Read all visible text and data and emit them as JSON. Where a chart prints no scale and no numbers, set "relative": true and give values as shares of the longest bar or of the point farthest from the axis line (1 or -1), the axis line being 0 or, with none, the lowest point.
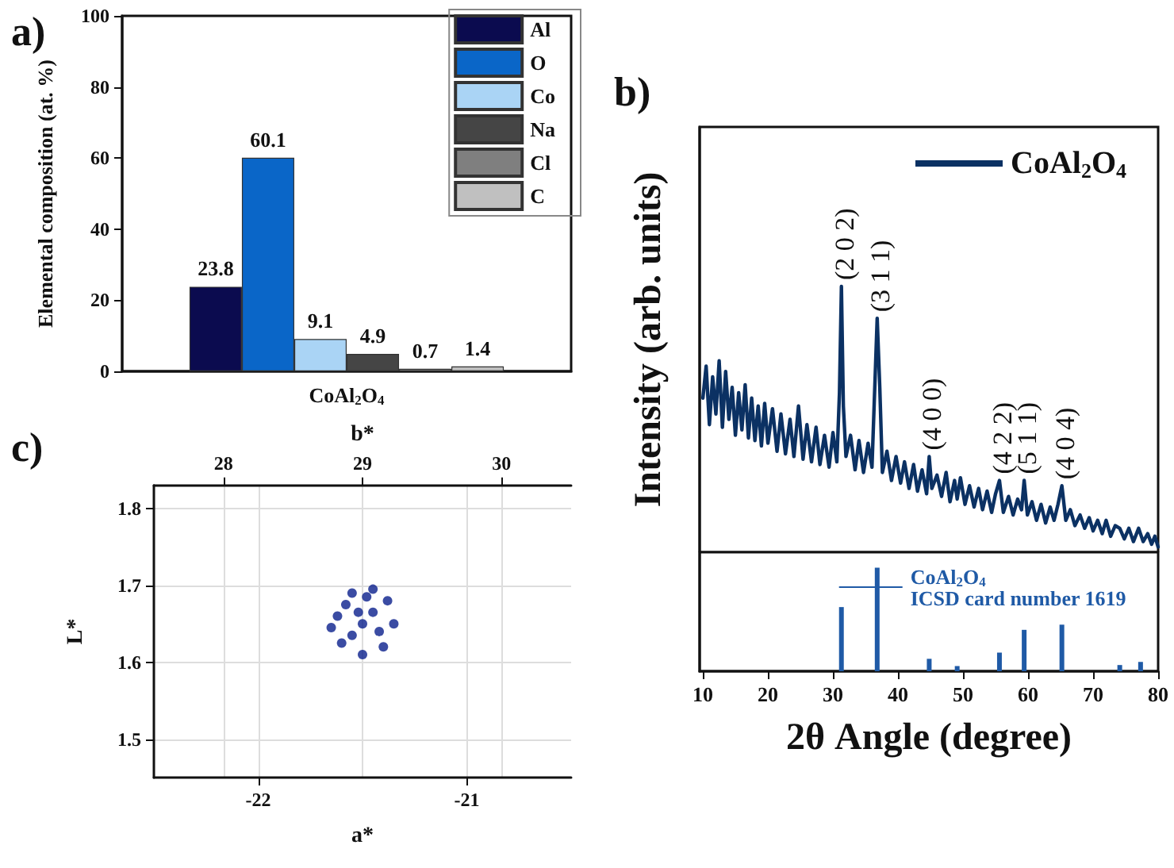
{
  "chart_data": [
    {
      "type": "bar",
      "title": "a)",
      "ylabel": "Elemental composition (at. %)",
      "categories": [
        "CoAl$_{2}$O$_{4}$"
      ],
      "series": [
        {
          "name": "Al",
          "color": "#0b0b4f",
          "values": [
            23.8
          ]
        },
        {
          "name": "O",
          "color": "#0a66c8",
          "values": [
            60.1
          ]
        },
        {
          "name": "Co",
          "color": "#aad4f5",
          "values": [
            9.1
          ]
        },
        {
          "name": "Na",
          "color": "#454545",
          "values": [
            4.9
          ]
        },
        {
          "name": "Cl",
          "color": "#7f7f7f",
          "values": [
            0.7
          ]
        },
        {
          "name": "C",
          "color": "#c0c0c0",
          "values": [
            1.4
          ]
        }
      ],
      "ylim": [
        0,
        100
      ],
      "yticks": [
        0,
        20,
        40,
        60,
        80,
        100
      ],
      "data_labels": true,
      "legend": "top right"
    },
    {
      "type": "line",
      "title": "b)",
      "ylabel": "Intensity (arb. units)",
      "relative": true,
      "xlim": [
        9.5,
        80
      ],
      "marker": "none",
      "line_style": "solid",
      "legend": "top right",
      "series": [
        {
          "name": "CoAl$_{2}$O$_{4}$",
          "color": "#0b3163",
          "x": [
            10,
            10.5,
            11,
            11.5,
            12,
            12.5,
            13,
            13.5,
            14,
            14.5,
            15,
            15.5,
            16,
            16.5,
            17,
            17.5,
            18,
            18.5,
            19,
            19.5,
            20,
            20.7,
            21.4,
            22,
            22.7,
            23.4,
            24,
            24.7,
            25.4,
            26,
            26.7,
            27.4,
            28,
            28.7,
            29.4,
            30,
            30.6,
            31,
            31.3,
            31.6,
            32,
            32.7,
            33.4,
            34,
            34.7,
            35.4,
            36,
            36.4,
            36.8,
            37.2,
            37.6,
            38.3,
            39,
            39.7,
            40.4,
            41,
            41.7,
            42.4,
            43,
            43.7,
            44.4,
            44.8,
            45.2,
            46,
            46.7,
            47.4,
            48,
            48.7,
            49.1,
            49.6,
            50.3,
            51,
            51.7,
            52.4,
            53,
            53.7,
            54.4,
            55,
            55.6,
            56.2,
            57,
            57.7,
            58.4,
            59,
            59.4,
            59.9,
            60.6,
            61.3,
            62,
            62.7,
            63.4,
            64,
            64.6,
            65.2,
            65.8,
            66.5,
            67.2,
            68,
            68.7,
            69.4,
            70,
            70.7,
            71.4,
            72,
            72.7,
            73.4,
            74.1,
            74.8,
            75.5,
            76.2,
            77,
            77.7,
            78.4,
            79,
            79.5,
            80
          ],
          "values": [
            0.58,
            0.7,
            0.48,
            0.66,
            0.52,
            0.72,
            0.47,
            0.68,
            0.5,
            0.62,
            0.44,
            0.6,
            0.46,
            0.63,
            0.43,
            0.58,
            0.42,
            0.55,
            0.4,
            0.56,
            0.41,
            0.54,
            0.38,
            0.52,
            0.37,
            0.5,
            0.36,
            0.55,
            0.35,
            0.48,
            0.34,
            0.47,
            0.33,
            0.44,
            0.32,
            0.45,
            0.34,
            0.6,
            1.0,
            0.55,
            0.36,
            0.44,
            0.31,
            0.42,
            0.3,
            0.41,
            0.32,
            0.6,
            0.88,
            0.62,
            0.3,
            0.38,
            0.27,
            0.36,
            0.26,
            0.34,
            0.24,
            0.33,
            0.23,
            0.31,
            0.22,
            0.36,
            0.24,
            0.29,
            0.21,
            0.3,
            0.19,
            0.27,
            0.2,
            0.28,
            0.18,
            0.25,
            0.17,
            0.24,
            0.16,
            0.23,
            0.15,
            0.22,
            0.27,
            0.15,
            0.21,
            0.14,
            0.2,
            0.16,
            0.27,
            0.14,
            0.19,
            0.12,
            0.18,
            0.11,
            0.17,
            0.12,
            0.18,
            0.25,
            0.12,
            0.16,
            0.1,
            0.14,
            0.09,
            0.13,
            0.08,
            0.12,
            0.07,
            0.12,
            0.06,
            0.1,
            0.09,
            0.05,
            0.09,
            0.04,
            0.09,
            0.04,
            0.07,
            0.03,
            0.06,
            0.02
          ]
        }
      ],
      "annotations": [
        {
          "text": "(2 0 2)",
          "x": 31.3,
          "y": 1.0
        },
        {
          "text": "(3 1 1)",
          "x": 36.8,
          "y": 0.88
        },
        {
          "text": "(4 0 0)",
          "x": 44.8,
          "y": 0.36
        },
        {
          "text": "(4 2 2)",
          "x": 55.6,
          "y": 0.27
        },
        {
          "text": "(5 1 1)",
          "x": 59.4,
          "y": 0.27
        },
        {
          "text": "(4 0 4)",
          "x": 65.2,
          "y": 0.25
        }
      ]
    },
    {
      "type": "bar",
      "xlabel": "2θ Angle (degree)",
      "relative": true,
      "xlim": [
        9.5,
        80
      ],
      "xticks": [
        10,
        20,
        30,
        40,
        50,
        60,
        70,
        80
      ],
      "legend": "top right",
      "tick_labels": "x",
      "series": [
        {
          "name": "CoAl$_{2}$O$_{4}$\nICSD card number 1619",
          "color": "#1f5aa6",
          "x": [
            31.3,
            36.8,
            44.8,
            49.1,
            55.6,
            59.4,
            65.2,
            74.1,
            77.3
          ],
          "values": [
            0.62,
            1,
            0.12,
            0.05,
            0.18,
            0.4,
            0.45,
            0.06,
            0.09
          ]
        }
      ]
    },
    {
      "type": "scatter",
      "title": "c)",
      "xlabel": "a*",
      "ylabel": "L*",
      "x2label": "b*",
      "xlim": [
        -22.5,
        -20.5
      ],
      "xticks": [
        -22,
        -21
      ],
      "x2lim": [
        27.5,
        30.5
      ],
      "x2ticks": [
        28,
        29,
        30
      ],
      "ylim": [
        1.45,
        1.83
      ],
      "yticks": [
        1.5,
        1.6,
        1.7,
        1.8
      ],
      "grid": true,
      "marker": "circle",
      "series": [
        {
          "color": "#0a1f8c",
          "x": [
            -21.62,
            -21.55,
            -21.45,
            -21.38,
            -21.35,
            -21.4,
            -21.5,
            -21.6,
            -21.65,
            -21.5,
            -21.45,
            -21.55,
            -21.42,
            -21.58,
            -21.48,
            -21.52
          ],
          "values": [
            1.66,
            1.69,
            1.695,
            1.68,
            1.65,
            1.62,
            1.61,
            1.625,
            1.645,
            1.65,
            1.665,
            1.635,
            1.64,
            1.675,
            1.685,
            1.665
          ]
        }
      ]
    }
  ]
}
